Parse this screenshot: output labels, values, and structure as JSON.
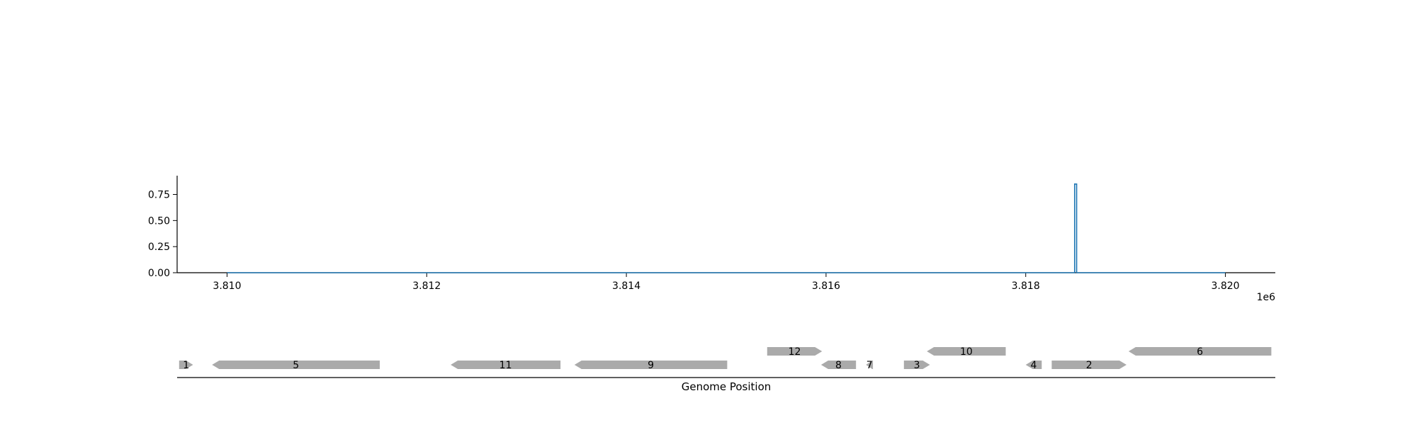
{
  "chart_data": [
    {
      "type": "line",
      "title": "",
      "xlabel": "",
      "ylabel": "",
      "x_offset_label": "1e6",
      "xlim": [
        3.8095,
        3.8205
      ],
      "ylim": [
        0,
        0.93
      ],
      "x_ticks": [
        3.81,
        3.812,
        3.814,
        3.816,
        3.818,
        3.82
      ],
      "x_tick_labels": [
        "3.810",
        "3.812",
        "3.814",
        "3.816",
        "3.818",
        "3.820"
      ],
      "y_ticks": [
        0.0,
        0.25,
        0.5,
        0.75
      ],
      "y_tick_labels": [
        "0.00",
        "0.25",
        "0.50",
        "0.75"
      ],
      "series": [
        {
          "color": "#1f77b4",
          "x": [
            3.81,
            3.81849,
            3.81849,
            3.81851,
            3.81851,
            3.82
          ],
          "y": [
            0.0,
            0.0,
            0.85,
            0.85,
            0.0,
            0.0
          ]
        }
      ],
      "grid": false,
      "spines": [
        "left",
        "bottom"
      ]
    },
    {
      "type": "gene_track",
      "xlabel": "Genome Position",
      "xlim": [
        3.8095,
        3.8205
      ],
      "feature_color": "#aaaaaa",
      "genes": [
        {
          "label": "1",
          "start": 3.80952,
          "end": 3.80966,
          "strand": "+",
          "row": 0
        },
        {
          "label": "5",
          "start": 3.80985,
          "end": 3.81153,
          "strand": "-",
          "row": 0
        },
        {
          "label": "11",
          "start": 3.81224,
          "end": 3.81334,
          "strand": "-",
          "row": 0
        },
        {
          "label": "9",
          "start": 3.81348,
          "end": 3.81501,
          "strand": "-",
          "row": 0
        },
        {
          "label": "12",
          "start": 3.81541,
          "end": 3.81596,
          "strand": "+",
          "row": 1
        },
        {
          "label": "8",
          "start": 3.81595,
          "end": 3.8163,
          "strand": "-",
          "row": 0
        },
        {
          "label": "7",
          "start": 3.8164,
          "end": 3.81647,
          "strand": "-",
          "row": 0
        },
        {
          "label": "3",
          "start": 3.81678,
          "end": 3.81704,
          "strand": "+",
          "row": 0
        },
        {
          "label": "10",
          "start": 3.81701,
          "end": 3.8178,
          "strand": "-",
          "row": 1
        },
        {
          "label": "4",
          "start": 3.818,
          "end": 3.81816,
          "strand": "-",
          "row": 0
        },
        {
          "label": "2",
          "start": 3.81826,
          "end": 3.81901,
          "strand": "+",
          "row": 0
        },
        {
          "label": "6",
          "start": 3.81903,
          "end": 3.82046,
          "strand": "-",
          "row": 1
        }
      ]
    }
  ]
}
